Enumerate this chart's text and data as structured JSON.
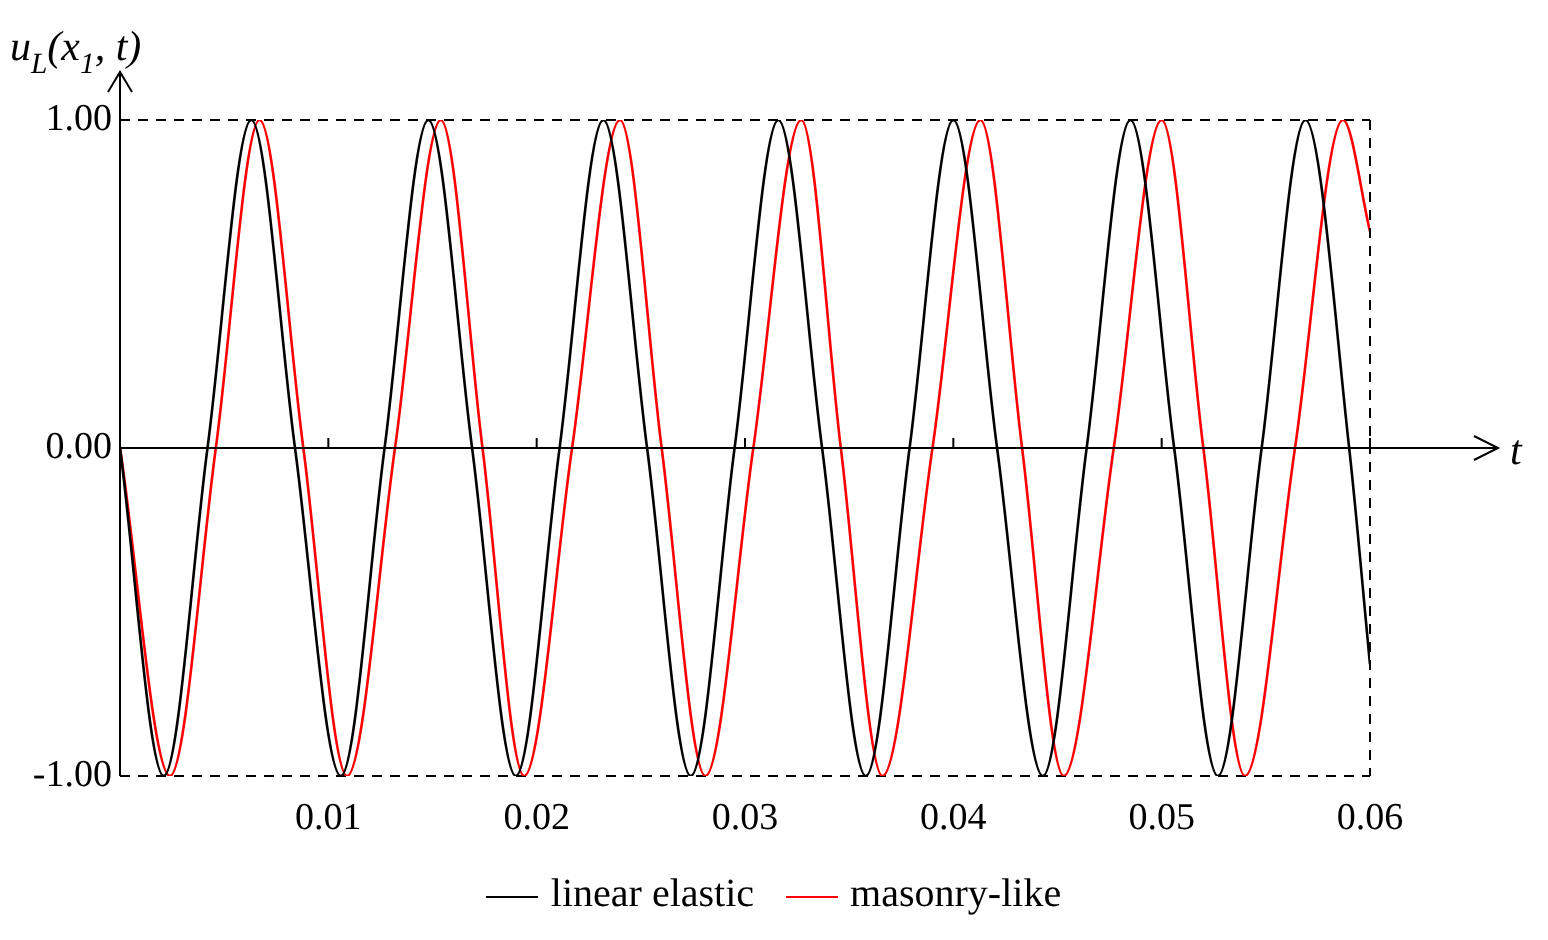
{
  "chart_data": {
    "type": "line",
    "xlabel": "t",
    "ylabel": "u$_{L}$(x$_{1}$, t)",
    "xlim": [
      0,
      0.06
    ],
    "ylim": [
      -1,
      1
    ],
    "xticks": [
      0.01,
      0.02,
      0.03,
      0.04,
      0.05,
      0.06
    ],
    "yticks": [
      {
        "value": -1,
        "label": "-1.00"
      },
      {
        "value": 0,
        "label": "0.00"
      },
      {
        "value": 1,
        "label": "1.00"
      }
    ],
    "grid": "y",
    "legend": "bottom",
    "marker": "none",
    "line_style": "solid",
    "series": [
      {
        "name": "linear elastic",
        "color": "#000000",
        "x": [
          0,
          0.0021,
          0.0042,
          0.0063,
          0.0084,
          0.0106,
          0.0127,
          0.0148,
          0.0169,
          0.019,
          0.0211,
          0.0232,
          0.0253,
          0.0274,
          0.0295,
          0.0316,
          0.0337,
          0.0358,
          0.0379,
          0.04,
          0.0421,
          0.0443,
          0.0464,
          0.0485,
          0.0506,
          0.0527,
          0.0548,
          0.0569,
          0.059,
          0.06
        ],
        "values": [
          0,
          -1,
          0,
          1,
          0,
          -1,
          0,
          1,
          0,
          -1,
          0,
          1,
          0,
          -1,
          0,
          1,
          0,
          -1,
          0,
          1,
          0,
          -1,
          0,
          1,
          0,
          -1,
          0,
          1,
          0,
          -0.66
        ]
      },
      {
        "name": "masonry-like",
        "color": "#ff0000",
        "x": [
          0,
          0.0024,
          0.0046,
          0.0067,
          0.0088,
          0.0109,
          0.0132,
          0.0154,
          0.0174,
          0.0194,
          0.0217,
          0.024,
          0.026,
          0.0281,
          0.0304,
          0.0327,
          0.0346,
          0.0366,
          0.039,
          0.0413,
          0.0433,
          0.0453,
          0.0477,
          0.05,
          0.052,
          0.054,
          0.0564,
          0.0587,
          0.06
        ],
        "values": [
          0,
          -1,
          0,
          1,
          0,
          -1,
          0,
          1,
          0,
          -1,
          0,
          1,
          0,
          -1,
          0,
          1,
          0,
          -1,
          0,
          1,
          0,
          -1,
          0,
          1,
          0,
          -1,
          0,
          1,
          0.66
        ]
      }
    ]
  }
}
